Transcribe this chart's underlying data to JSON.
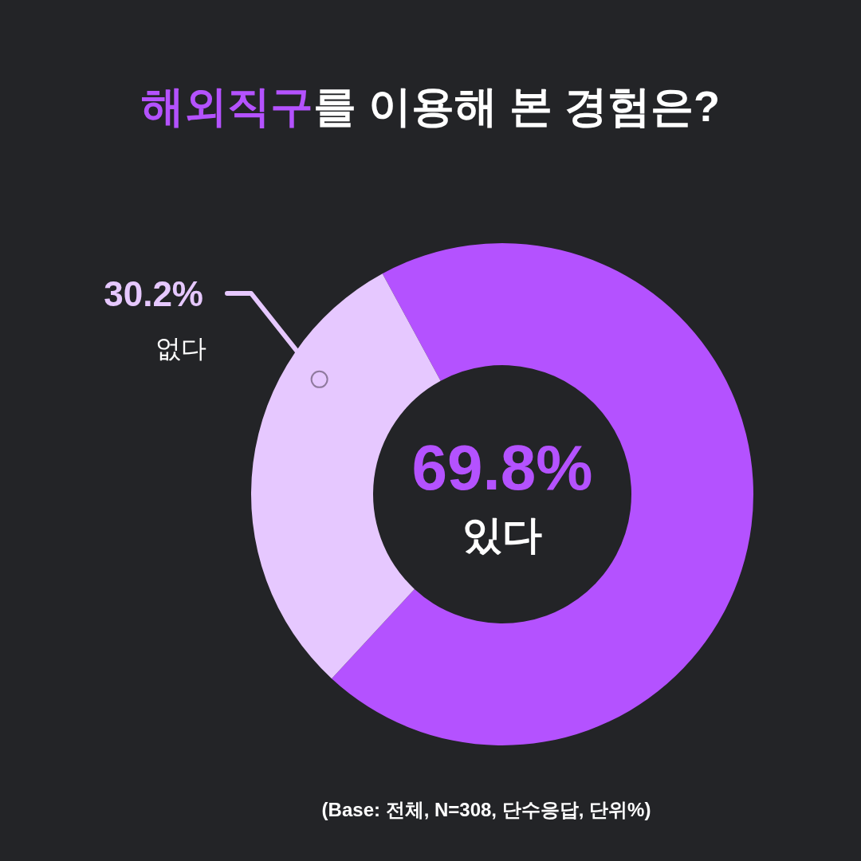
{
  "chart_data": {
    "type": "donut",
    "title": "**해외직구**를 이용해 본 경험은?",
    "categories": [
      "있다",
      "없다"
    ],
    "values": [
      69.8,
      30.2
    ],
    "colors": [
      "#b452ff",
      "#e6c8ff"
    ],
    "value_labels": [
      "69.8%",
      "30.2%"
    ],
    "annotations": [
      "(Base: 전체, N=308, 단수응답, 단위%)"
    ]
  }
}
